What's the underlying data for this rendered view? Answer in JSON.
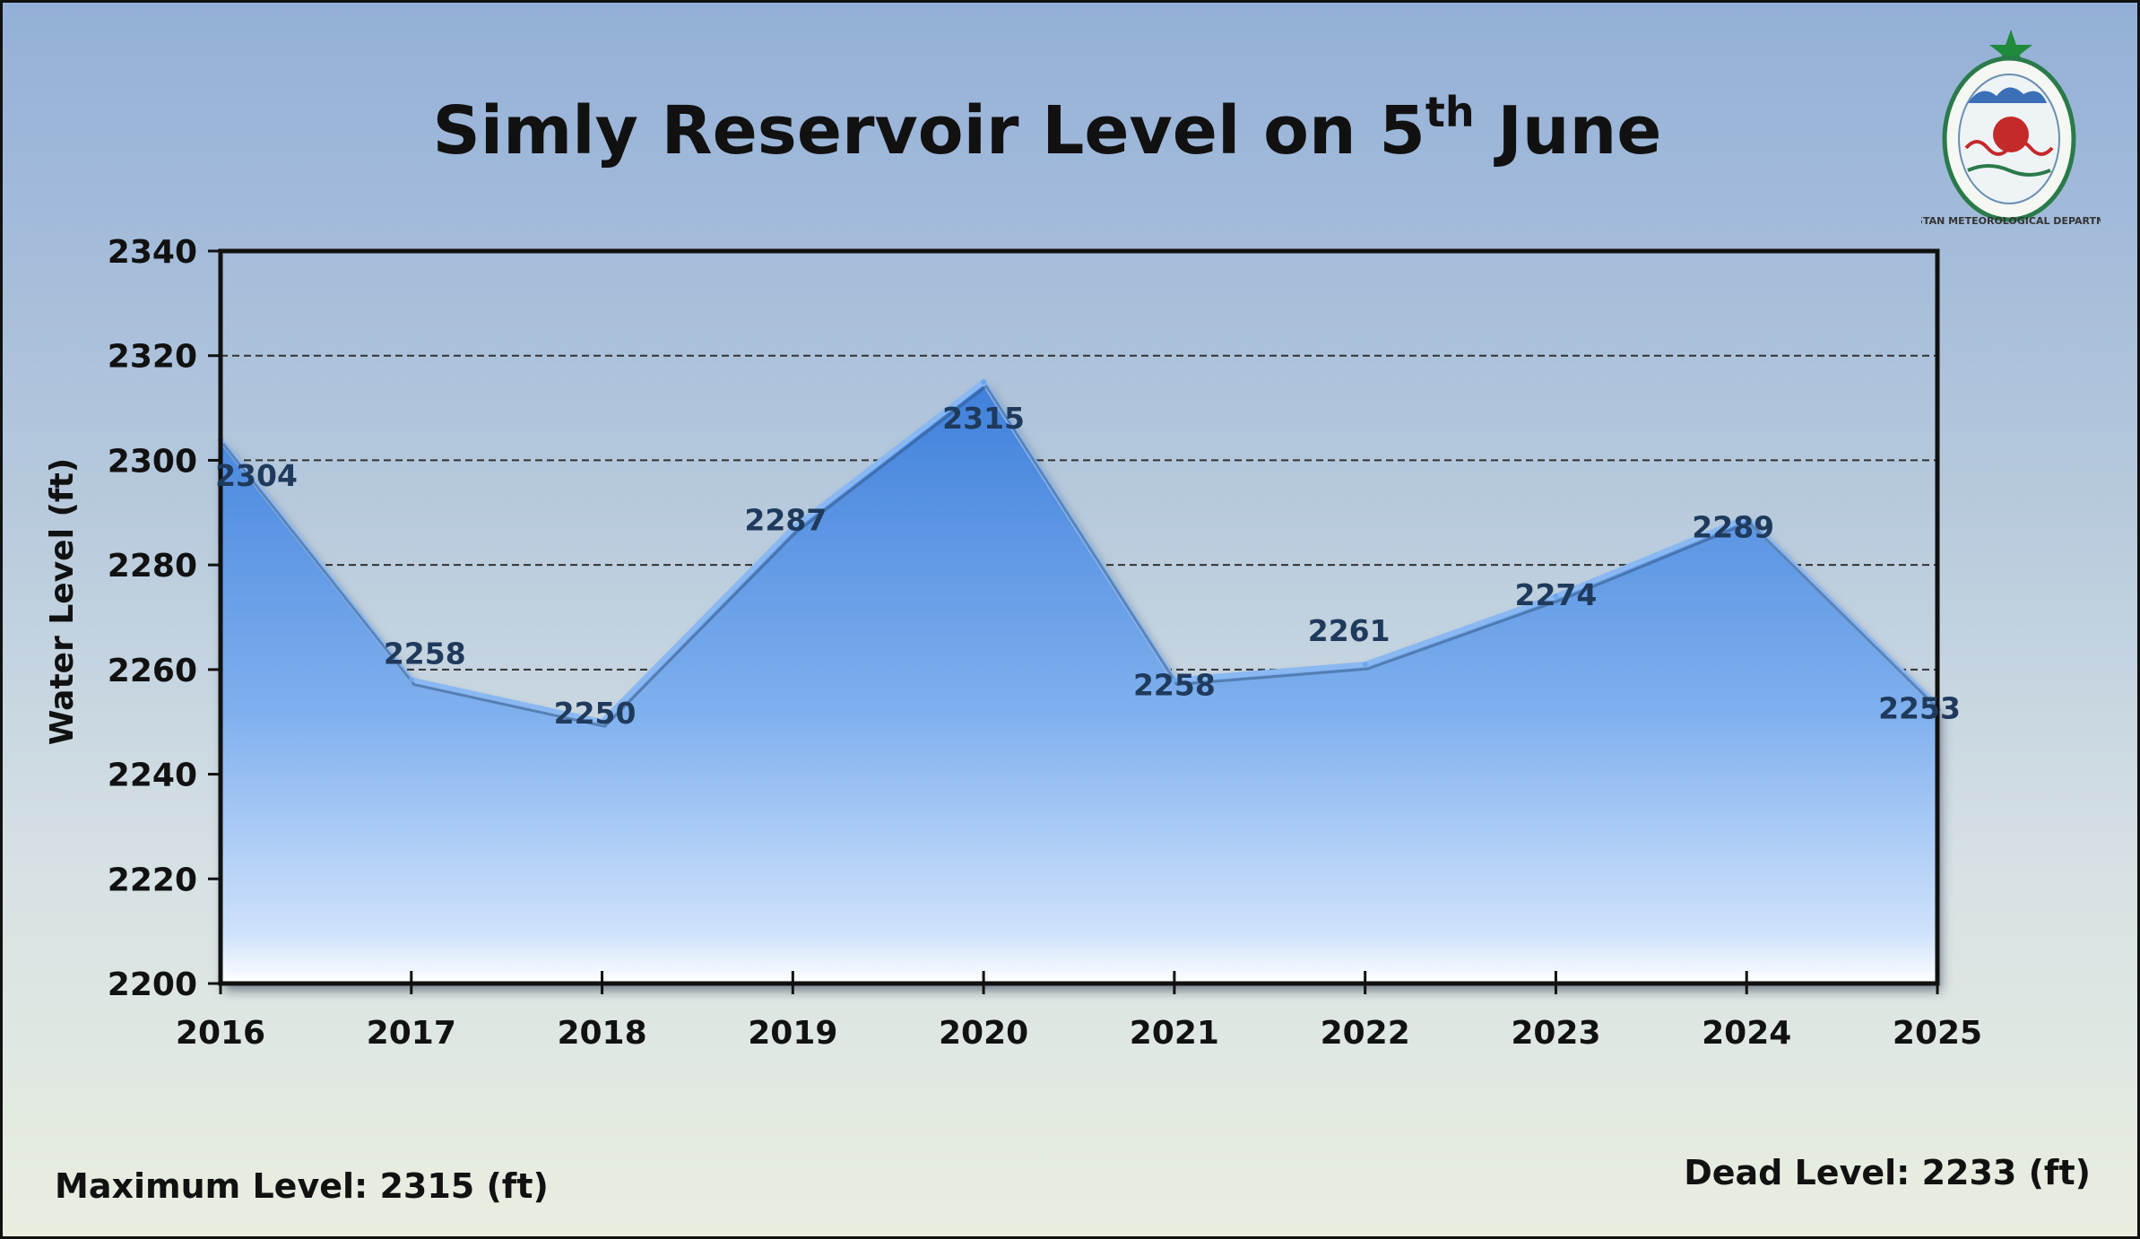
{
  "chart_data": {
    "type": "area",
    "title": "Simly Reservoir Level on 5",
    "title_superscript": "th",
    "title_suffix": " June",
    "ylabel": "Water Level (ft)",
    "xlabel": "",
    "categories": [
      "2016",
      "2017",
      "2018",
      "2019",
      "2020",
      "2021",
      "2022",
      "2023",
      "2024",
      "2025"
    ],
    "values": [
      2304,
      2258,
      2250,
      2287,
      2315,
      2258,
      2261,
      2274,
      2289,
      2253
    ],
    "data_labels": [
      "2304",
      "2258",
      "2250",
      "2287",
      "2315",
      "2258",
      "2261",
      "2274",
      "2289",
      "2253"
    ],
    "ylim": [
      2200,
      2340
    ],
    "yticks": [
      "2200",
      "2220",
      "2240",
      "2260",
      "2280",
      "2300",
      "2320",
      "2340"
    ],
    "grid": "horizontal dashed",
    "legend": "none",
    "colors": {
      "area_top": "#4f8fe0",
      "area_bottom": "#e6f0ff",
      "grid": "#333333"
    }
  },
  "notes": {
    "max_level": "Maximum Level: 2315 (ft)",
    "dead_level": "Dead Level: 2233 (ft)"
  },
  "logo": {
    "icon": "pakistan-meteorological-department-logo",
    "text": "PAKISTAN METEOROLOGICAL DEPARTMENT"
  }
}
